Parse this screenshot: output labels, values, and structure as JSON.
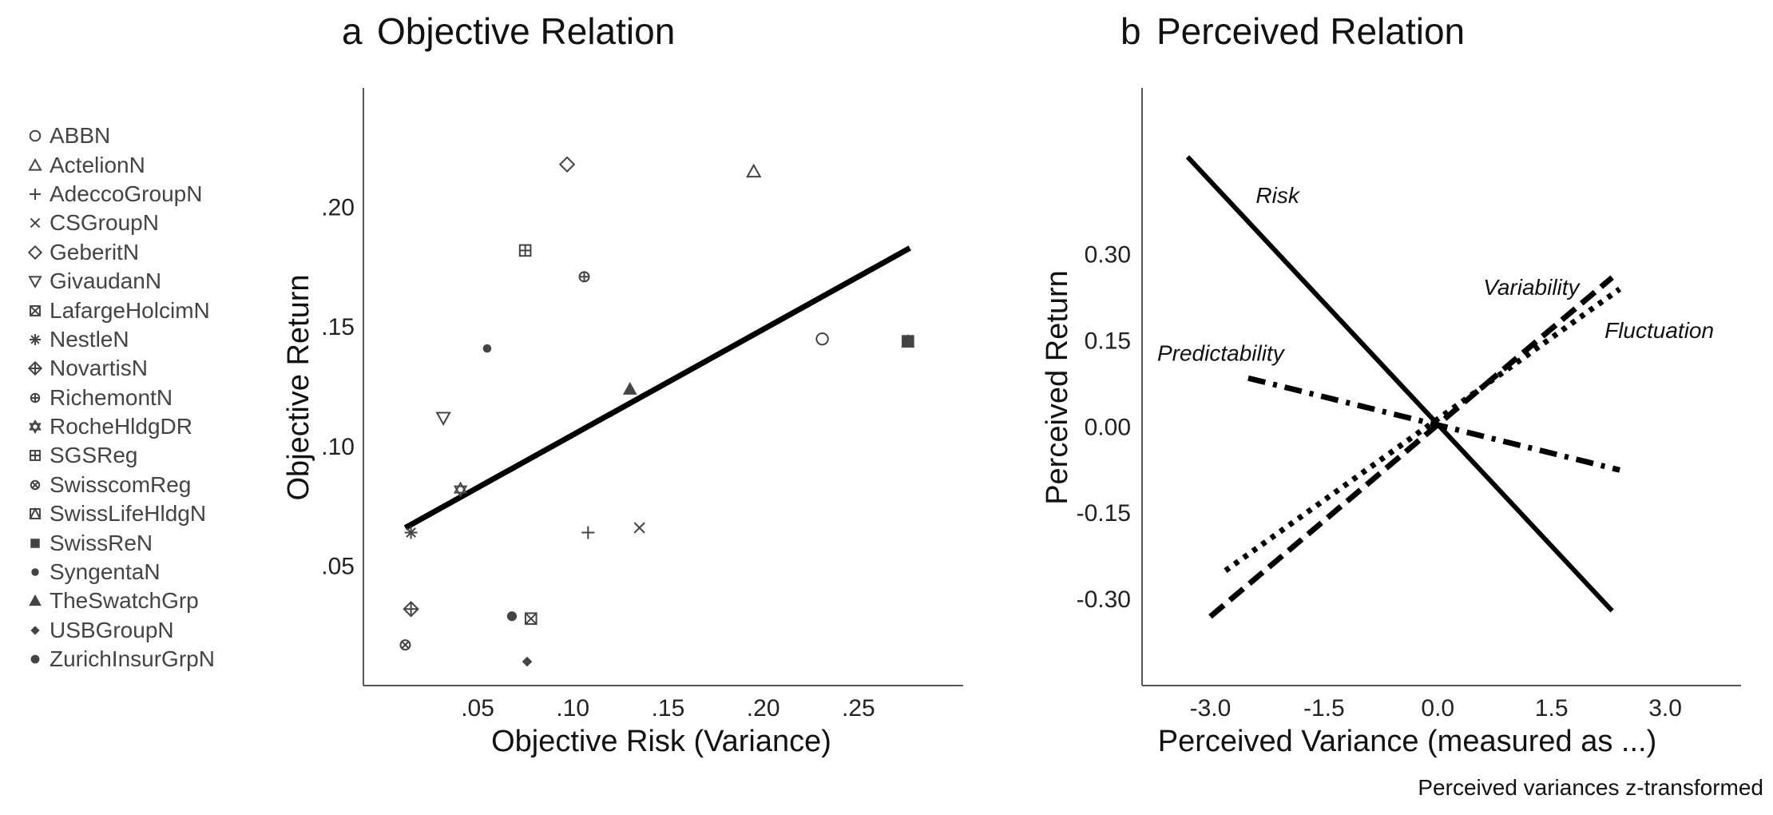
{
  "caption": "Perceived variances z-transformed",
  "legend": {
    "items": [
      {
        "label": "ABBN",
        "shape": "circle-open"
      },
      {
        "label": "ActelionN",
        "shape": "triangle-open"
      },
      {
        "label": "AdeccoGroupN",
        "shape": "plus"
      },
      {
        "label": "CSGroupN",
        "shape": "cross"
      },
      {
        "label": "GeberitN",
        "shape": "diamond-open"
      },
      {
        "label": "GivaudanN",
        "shape": "triangle-down-open"
      },
      {
        "label": "LafargeHolcimN",
        "shape": "square-cross"
      },
      {
        "label": "NestleN",
        "shape": "asterisk"
      },
      {
        "label": "NovartisN",
        "shape": "diamond-plus"
      },
      {
        "label": "RichemontN",
        "shape": "circle-plus"
      },
      {
        "label": "RocheHldgDR",
        "shape": "star-of-david"
      },
      {
        "label": "SGSReg",
        "shape": "square-plus"
      },
      {
        "label": "SwisscomReg",
        "shape": "circle-cross"
      },
      {
        "label": "SwissLifeHldgN",
        "shape": "square-triangle"
      },
      {
        "label": "SwissReN",
        "shape": "square-filled"
      },
      {
        "label": "SyngentaN",
        "shape": "circle-filled-small"
      },
      {
        "label": "TheSwatchGrp",
        "shape": "triangle-filled"
      },
      {
        "label": "USBGroupN",
        "shape": "diamond-filled"
      },
      {
        "label": "ZurichInsurGrpN",
        "shape": "circle-filled"
      }
    ]
  },
  "chart_data": [
    {
      "panel_letter": "a",
      "title": "Objective Relation",
      "type": "scatter",
      "xlabel": "Objective Risk (Variance)",
      "ylabel": "Objective Return",
      "xlim": [
        -0.01,
        0.305
      ],
      "ylim": [
        0.0,
        0.25
      ],
      "xticks": [
        0.05,
        0.1,
        0.15,
        0.2,
        0.25
      ],
      "xtick_labels": [
        ".05",
        ".10",
        ".15",
        ".20",
        ".25"
      ],
      "yticks": [
        0.05,
        0.1,
        0.15,
        0.2
      ],
      "ytick_labels": [
        ".05",
        ".10",
        ".15",
        ".20"
      ],
      "points": [
        {
          "name": "ABBN",
          "x": 0.231,
          "y": 0.145
        },
        {
          "name": "ActelionN",
          "x": 0.195,
          "y": 0.215
        },
        {
          "name": "AdeccoGroupN",
          "x": 0.108,
          "y": 0.064
        },
        {
          "name": "CSGroupN",
          "x": 0.135,
          "y": 0.066
        },
        {
          "name": "GeberitN",
          "x": 0.097,
          "y": 0.218
        },
        {
          "name": "GivaudanN",
          "x": 0.032,
          "y": 0.112
        },
        {
          "name": "LafargeHolcimN",
          "x": 0.078,
          "y": 0.028
        },
        {
          "name": "NestleN",
          "x": 0.015,
          "y": 0.064
        },
        {
          "name": "NovartisN",
          "x": 0.015,
          "y": 0.032
        },
        {
          "name": "RichemontN",
          "x": 0.106,
          "y": 0.171
        },
        {
          "name": "RocheHldgDR",
          "x": 0.041,
          "y": 0.082
        },
        {
          "name": "SGSReg",
          "x": 0.075,
          "y": 0.182
        },
        {
          "name": "SwisscomReg",
          "x": 0.012,
          "y": 0.017
        },
        {
          "name": "SwissLifeHldgN",
          "x": 0.276,
          "y": 0.144
        },
        {
          "name": "SwissReN",
          "x": 0.276,
          "y": 0.144
        },
        {
          "name": "SyngentaN",
          "x": 0.055,
          "y": 0.141
        },
        {
          "name": "TheSwatchGrp",
          "x": 0.13,
          "y": 0.124
        },
        {
          "name": "USBGroupN",
          "x": 0.076,
          "y": 0.01
        },
        {
          "name": "ZurichInsurGrpN",
          "x": 0.068,
          "y": 0.029
        }
      ],
      "trend_line": {
        "x": [
          0.012,
          0.277
        ],
        "y": [
          0.066,
          0.183
        ]
      }
    },
    {
      "panel_letter": "b",
      "title": "Perceived Relation",
      "type": "line",
      "xlabel": "Perceived Variance (measured as ...)",
      "ylabel": "Perceived Return",
      "xlim": [
        -3.9,
        4.0
      ],
      "ylim": [
        -0.45,
        0.59
      ],
      "xticks": [
        -3.0,
        -1.5,
        0.0,
        1.5,
        3.0
      ],
      "xtick_labels": [
        "-3.0",
        "-1.5",
        "0.0",
        "1.5",
        "3.0"
      ],
      "yticks": [
        -0.3,
        -0.15,
        0.0,
        0.15,
        0.3
      ],
      "ytick_labels": [
        "-0.30",
        "-0.15",
        "0.00",
        "0.15",
        "0.30"
      ],
      "series": [
        {
          "name": "Risk",
          "style": "solid",
          "x": [
            -3.3,
            2.3
          ],
          "y": [
            0.47,
            -0.32
          ]
        },
        {
          "name": "Variability",
          "style": "dashed",
          "x": [
            -3.0,
            2.3
          ],
          "y": [
            -0.33,
            0.26
          ]
        },
        {
          "name": "Fluctuation",
          "style": "dotted",
          "x": [
            -2.8,
            2.4
          ],
          "y": [
            -0.25,
            0.24
          ]
        },
        {
          "name": "Predictability",
          "style": "dashdot",
          "x": [
            -2.5,
            2.4
          ],
          "y": [
            0.085,
            -0.075
          ]
        }
      ],
      "series_labels": [
        {
          "text": "Risk",
          "x": -2.4,
          "y": 0.39
        },
        {
          "text": "Variability",
          "x": 0.6,
          "y": 0.23
        },
        {
          "text": "Fluctuation",
          "x": 2.2,
          "y": 0.155
        },
        {
          "text": "Predictability",
          "x": -3.7,
          "y": 0.115
        }
      ]
    }
  ]
}
